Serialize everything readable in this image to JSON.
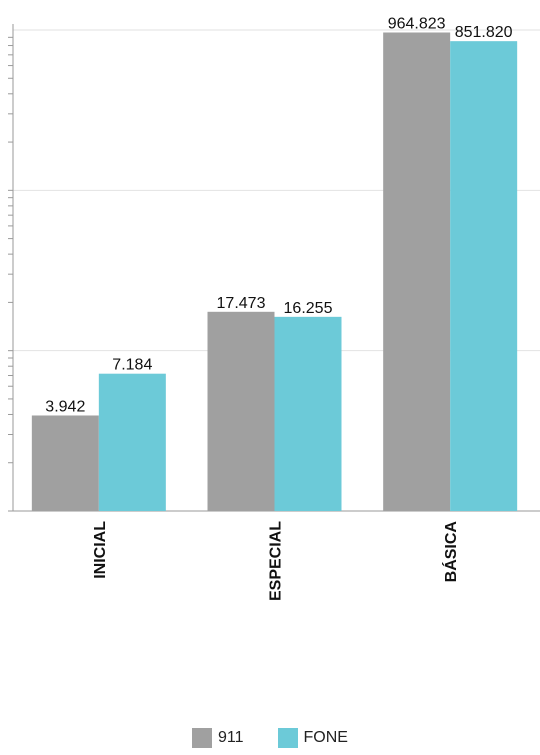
{
  "chart_data": {
    "type": "bar",
    "scale": "log",
    "categories": [
      "INICIAL",
      "ESPECIAL",
      "BÁSICA"
    ],
    "series": [
      {
        "name": "911",
        "color": "#a0a0a0",
        "values": [
          3942,
          17473,
          964823
        ],
        "labels": [
          "3.942",
          "17.473",
          "964.823"
        ]
      },
      {
        "name": "FONE",
        "color": "#6ccad8",
        "values": [
          7184,
          16255,
          851820
        ],
        "labels": [
          "7.184",
          "16.255",
          "851.820"
        ]
      }
    ],
    "ylim": [
      1000,
      1000000
    ],
    "grid": true,
    "legend_position": "bottom"
  }
}
